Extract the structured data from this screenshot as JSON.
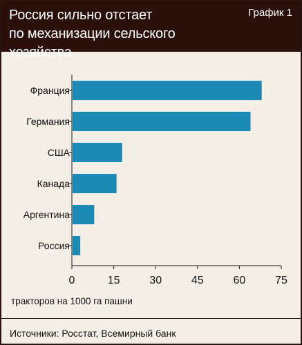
{
  "header": {
    "title_line1": "Россия сильно отстает",
    "title_line2": "по механизации сельского хозяйства",
    "badge": "График 1"
  },
  "unit_note": "тракторов на 1000 га пашни",
  "source_note": "Источники: Росстат, Всемирный банк",
  "chart_data": {
    "type": "bar",
    "orientation": "horizontal",
    "categories": [
      "Франция",
      "Германия",
      "США",
      "Канада",
      "Аргентина",
      "Россия"
    ],
    "values": [
      68,
      64,
      18,
      16,
      8,
      3
    ],
    "x_ticks": [
      "0",
      "15",
      "30",
      "45",
      "60",
      "75"
    ],
    "xlim": [
      0,
      75
    ],
    "bar_color": "#1b8bb6",
    "grid": false,
    "legend": "none"
  }
}
